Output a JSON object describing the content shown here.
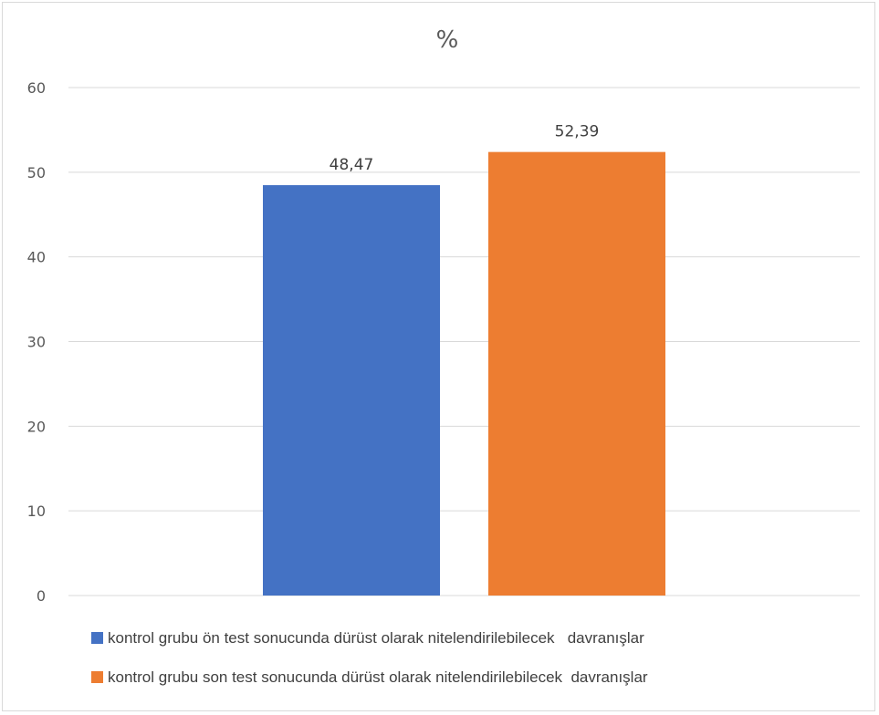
{
  "chart_data": {
    "type": "bar",
    "title": "%",
    "categories": [
      ""
    ],
    "series": [
      {
        "name": "kontrol grubu ön test sonucunda dürüst olarak nitelendirilebilecek   davranışlar",
        "values": [
          48.47
        ],
        "label": "48,47",
        "color": "#4472c4"
      },
      {
        "name": "kontrol grubu son test sonucunda dürüst olarak nitelendirilebilecek  davranışlar",
        "values": [
          52.39
        ],
        "label": "52,39",
        "color": "#ed7d31"
      }
    ],
    "yticks": [
      "0",
      "10",
      "20",
      "30",
      "40",
      "50",
      "60"
    ],
    "ylim": [
      0,
      60
    ],
    "grid": true,
    "legend_position": "bottom"
  }
}
